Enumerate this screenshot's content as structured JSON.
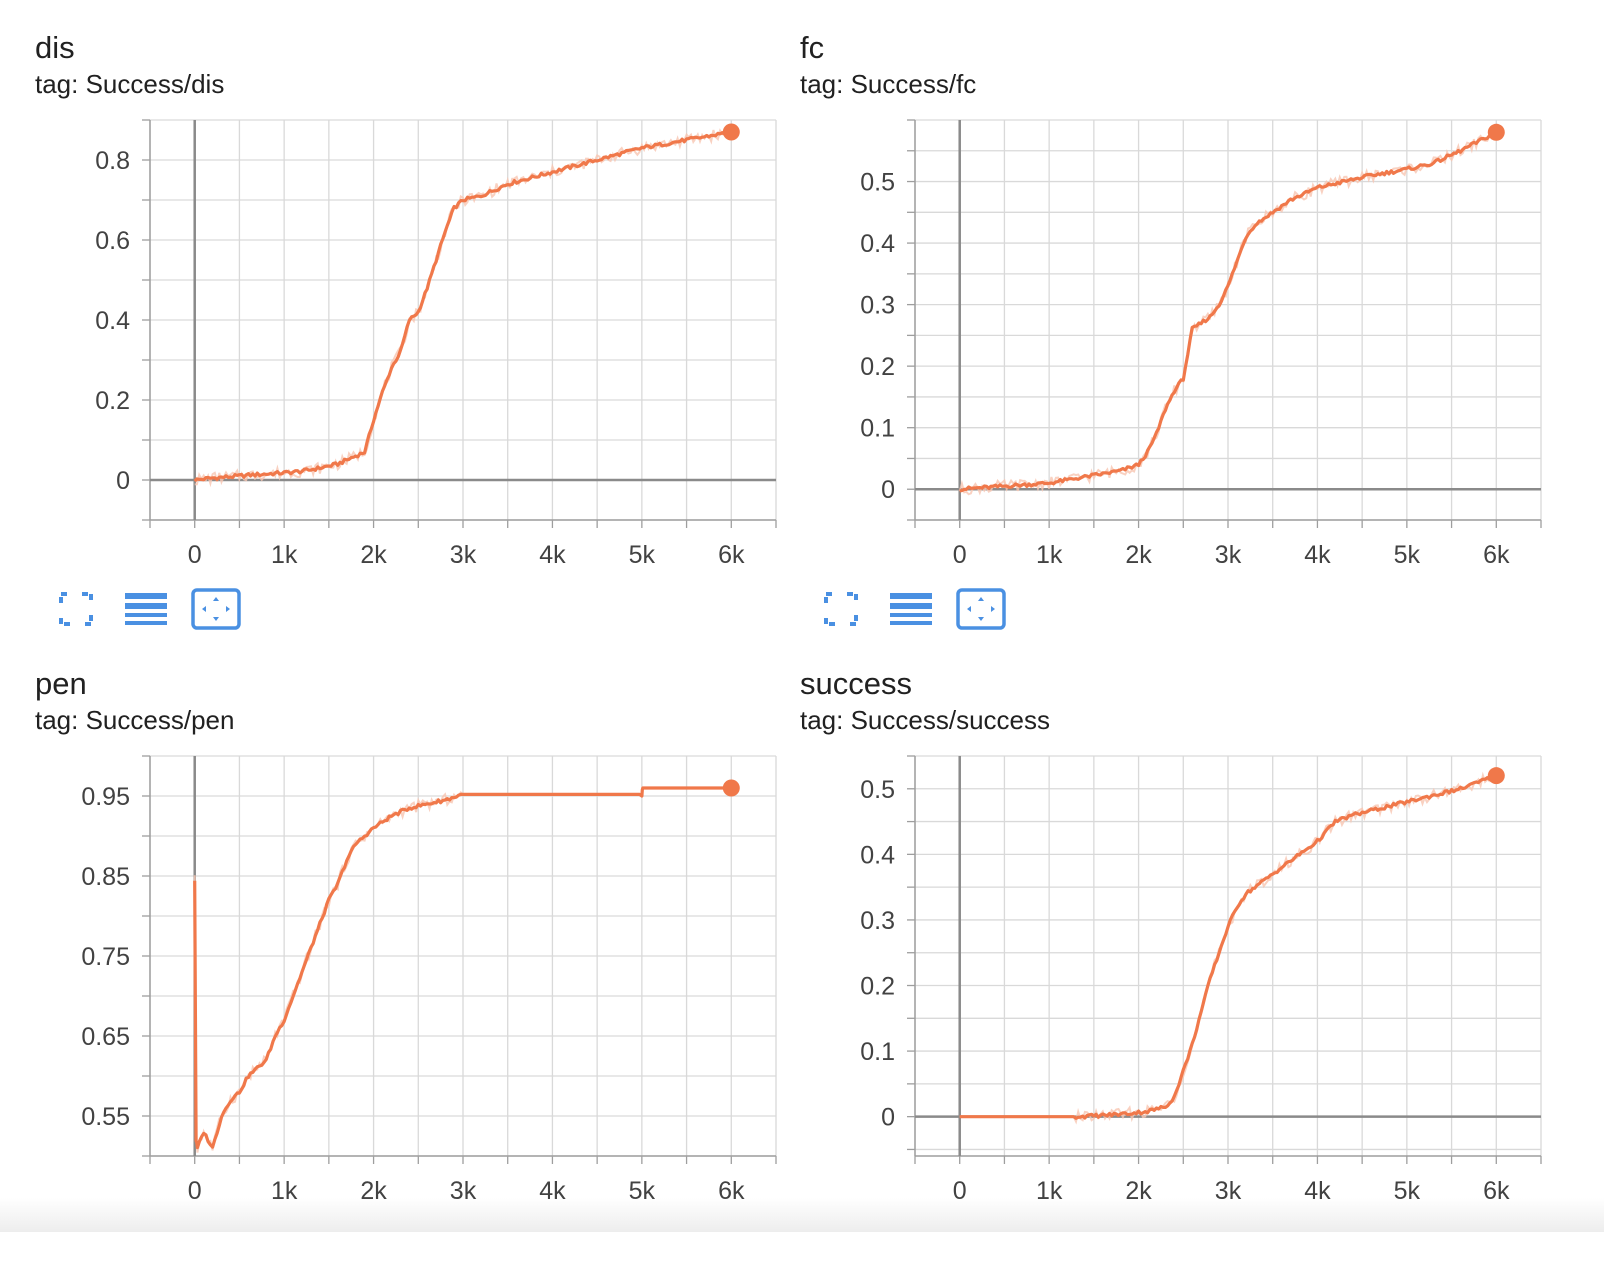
{
  "colors": {
    "series": "#f0784a",
    "series_raw": "#f7c5b2",
    "grid": "#d9d9d9",
    "axis": "#9e9e9e",
    "icon": "#4a90e2"
  },
  "toolbar": {
    "icons": [
      "fullscreen-icon",
      "data-table-icon",
      "fit-domain-icon"
    ]
  },
  "chart_data": [
    {
      "type": "line",
      "title": "dis",
      "subtitle": "tag: Success/dis",
      "xlim": [
        -500,
        6500
      ],
      "ylim": [
        -0.1,
        0.9
      ],
      "x_ticks": [
        0,
        1000,
        2000,
        3000,
        4000,
        5000,
        6000
      ],
      "x_tick_labels": [
        "0",
        "1k",
        "2k",
        "3k",
        "4k",
        "5k",
        "6k"
      ],
      "y_ticks": [
        0,
        0.2,
        0.4,
        0.6,
        0.8
      ],
      "y_tick_labels": [
        "0",
        "0.2",
        "0.4",
        "0.6",
        "0.8"
      ],
      "grid": true,
      "series": [
        {
          "x": [
            0,
            200,
            400,
            600,
            800,
            1000,
            1200,
            1400,
            1600,
            1700,
            1800,
            1900,
            2000,
            2100,
            2200,
            2300,
            2400,
            2500,
            2600,
            2700,
            2800,
            2900,
            3000,
            3200,
            3500,
            4000,
            4500,
            5000,
            5500,
            6000
          ],
          "y": [
            0.0,
            0.005,
            0.008,
            0.012,
            0.015,
            0.018,
            0.022,
            0.03,
            0.04,
            0.05,
            0.06,
            0.07,
            0.15,
            0.22,
            0.28,
            0.32,
            0.4,
            0.42,
            0.48,
            0.55,
            0.62,
            0.68,
            0.7,
            0.71,
            0.74,
            0.77,
            0.8,
            0.83,
            0.85,
            0.87
          ]
        }
      ]
    },
    {
      "type": "line",
      "title": "fc",
      "subtitle": "tag: Success/fc",
      "xlim": [
        -500,
        6500
      ],
      "ylim": [
        -0.05,
        0.6
      ],
      "x_ticks": [
        0,
        1000,
        2000,
        3000,
        4000,
        5000,
        6000
      ],
      "x_tick_labels": [
        "0",
        "1k",
        "2k",
        "3k",
        "4k",
        "5k",
        "6k"
      ],
      "y_ticks": [
        0,
        0.1,
        0.2,
        0.3,
        0.4,
        0.5
      ],
      "y_tick_labels": [
        "0",
        "0.1",
        "0.2",
        "0.3",
        "0.4",
        "0.5"
      ],
      "grid": true,
      "series": [
        {
          "x": [
            0,
            200,
            400,
            600,
            800,
            1000,
            1200,
            1400,
            1600,
            1800,
            2000,
            2100,
            2200,
            2300,
            2400,
            2500,
            2600,
            2700,
            2800,
            2900,
            3000,
            3100,
            3200,
            3300,
            3500,
            3700,
            4000,
            4300,
            4600,
            5000,
            5300,
            5600,
            6000
          ],
          "y": [
            0.0,
            0.002,
            0.004,
            0.006,
            0.008,
            0.01,
            0.015,
            0.02,
            0.025,
            0.03,
            0.04,
            0.06,
            0.09,
            0.13,
            0.16,
            0.18,
            0.26,
            0.27,
            0.28,
            0.3,
            0.33,
            0.37,
            0.41,
            0.43,
            0.45,
            0.47,
            0.49,
            0.5,
            0.51,
            0.52,
            0.53,
            0.55,
            0.58
          ]
        }
      ]
    },
    {
      "type": "line",
      "title": "pen",
      "subtitle": "tag: Success/pen",
      "xlim": [
        -500,
        6500
      ],
      "ylim": [
        0.5,
        1.0
      ],
      "x_ticks": [
        0,
        1000,
        2000,
        3000,
        4000,
        5000,
        6000
      ],
      "x_tick_labels": [
        "0",
        "1k",
        "2k",
        "3k",
        "4k",
        "5k",
        "6k"
      ],
      "y_ticks": [
        0.55,
        0.65,
        0.75,
        0.85,
        0.95
      ],
      "y_tick_labels": [
        "0.55",
        "0.65",
        "0.75",
        "0.85",
        "0.95"
      ],
      "grid": true,
      "series": [
        {
          "x": [
            0,
            15,
            30,
            100,
            200,
            300,
            400,
            500,
            600,
            700,
            800,
            900,
            1000,
            1100,
            1200,
            1300,
            1400,
            1500,
            1600,
            1700,
            1800,
            1900,
            2000,
            2200,
            2400,
            2600,
            2800,
            3000,
            4000,
            5000,
            5010,
            6000
          ],
          "y": [
            0.845,
            0.52,
            0.51,
            0.53,
            0.51,
            0.55,
            0.57,
            0.58,
            0.6,
            0.61,
            0.62,
            0.65,
            0.67,
            0.7,
            0.73,
            0.76,
            0.79,
            0.82,
            0.84,
            0.87,
            0.89,
            0.9,
            0.91,
            0.925,
            0.935,
            0.94,
            0.945,
            0.952,
            0.952,
            0.952,
            0.96,
            0.96
          ]
        }
      ]
    },
    {
      "type": "line",
      "title": "success",
      "subtitle": "tag: Success/success",
      "xlim": [
        -500,
        6500
      ],
      "ylim": [
        -0.06,
        0.55
      ],
      "x_ticks": [
        0,
        1000,
        2000,
        3000,
        4000,
        5000,
        6000
      ],
      "x_tick_labels": [
        "0",
        "1k",
        "2k",
        "3k",
        "4k",
        "5k",
        "6k"
      ],
      "y_ticks": [
        0,
        0.1,
        0.2,
        0.3,
        0.4,
        0.5
      ],
      "y_tick_labels": [
        "0",
        "0.1",
        "0.2",
        "0.3",
        "0.4",
        "0.5"
      ],
      "grid": true,
      "series": [
        {
          "x": [
            0,
            1300,
            1600,
            1900,
            2100,
            2300,
            2400,
            2500,
            2600,
            2700,
            2800,
            2900,
            3000,
            3100,
            3200,
            3400,
            3600,
            3800,
            4000,
            4200,
            4400,
            4700,
            5000,
            5300,
            5600,
            6000
          ],
          "y": [
            0.0,
            0.0,
            0.002,
            0.005,
            0.008,
            0.015,
            0.03,
            0.07,
            0.11,
            0.16,
            0.21,
            0.25,
            0.29,
            0.32,
            0.34,
            0.36,
            0.38,
            0.4,
            0.42,
            0.45,
            0.46,
            0.47,
            0.48,
            0.49,
            0.5,
            0.52
          ]
        }
      ]
    }
  ]
}
